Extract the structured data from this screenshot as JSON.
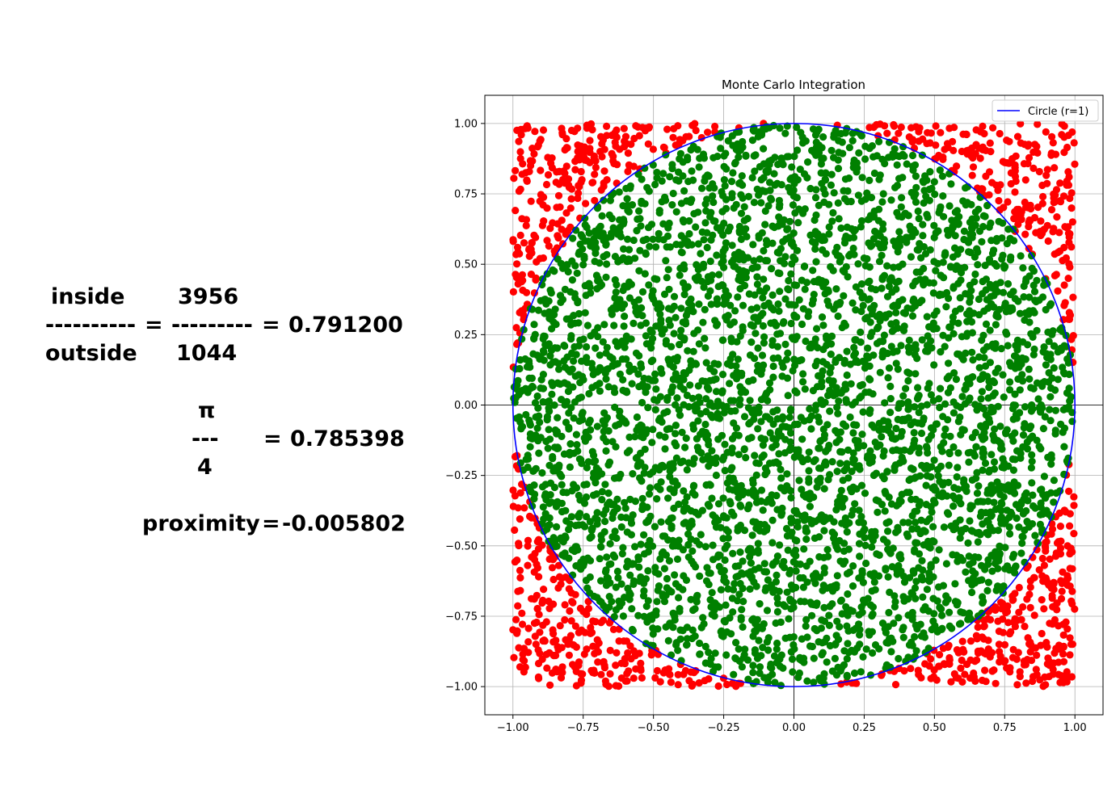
{
  "formula": {
    "inside_label": "inside",
    "outside_label": "outside",
    "ratio_bar_left": "----------",
    "ratio_bar_right": "---------",
    "equals": "=",
    "inside_count": "3956",
    "outside_count": "1044",
    "ratio_value": "0.791200",
    "pi_symbol": "π",
    "pi_bar": "---",
    "pi_denominator": "4",
    "pi_over_four_value": "0.785398",
    "proximity_label": "proximity",
    "proximity_value": "-0.005802"
  },
  "chart_data": {
    "type": "scatter",
    "title": "Monte Carlo Integration",
    "xlabel": "",
    "ylabel": "",
    "xlim": [
      -1.1,
      1.1
    ],
    "ylim": [
      -1.1,
      1.1
    ],
    "xticks": [
      -1.0,
      -0.75,
      -0.5,
      -0.25,
      0.0,
      0.25,
      0.5,
      0.75,
      1.0
    ],
    "yticks": [
      -1.0,
      -0.75,
      -0.5,
      -0.25,
      0.0,
      0.25,
      0.5,
      0.75,
      1.0
    ],
    "xtick_labels": [
      "−1.00",
      "−0.75",
      "−0.50",
      "−0.25",
      "0.00",
      "0.25",
      "0.50",
      "0.75",
      "1.00"
    ],
    "ytick_labels": [
      "−1.00",
      "−0.75",
      "−0.50",
      "−0.25",
      "0.00",
      "0.25",
      "0.50",
      "0.75",
      "1.00"
    ],
    "grid": true,
    "legend_position": "top-right",
    "sample_range": [
      -1.0,
      1.0
    ],
    "inside_count": 3956,
    "outside_count": 1044,
    "series": [
      {
        "kind": "scatter",
        "role": "inside",
        "count": 3956,
        "color": "#008000"
      },
      {
        "kind": "scatter",
        "role": "outside",
        "count": 1044,
        "color": "#ff0000"
      },
      {
        "kind": "line",
        "name": "Circle (r=1)",
        "radius": 1,
        "center": [
          0,
          0
        ],
        "color": "#0000ff"
      }
    ]
  }
}
